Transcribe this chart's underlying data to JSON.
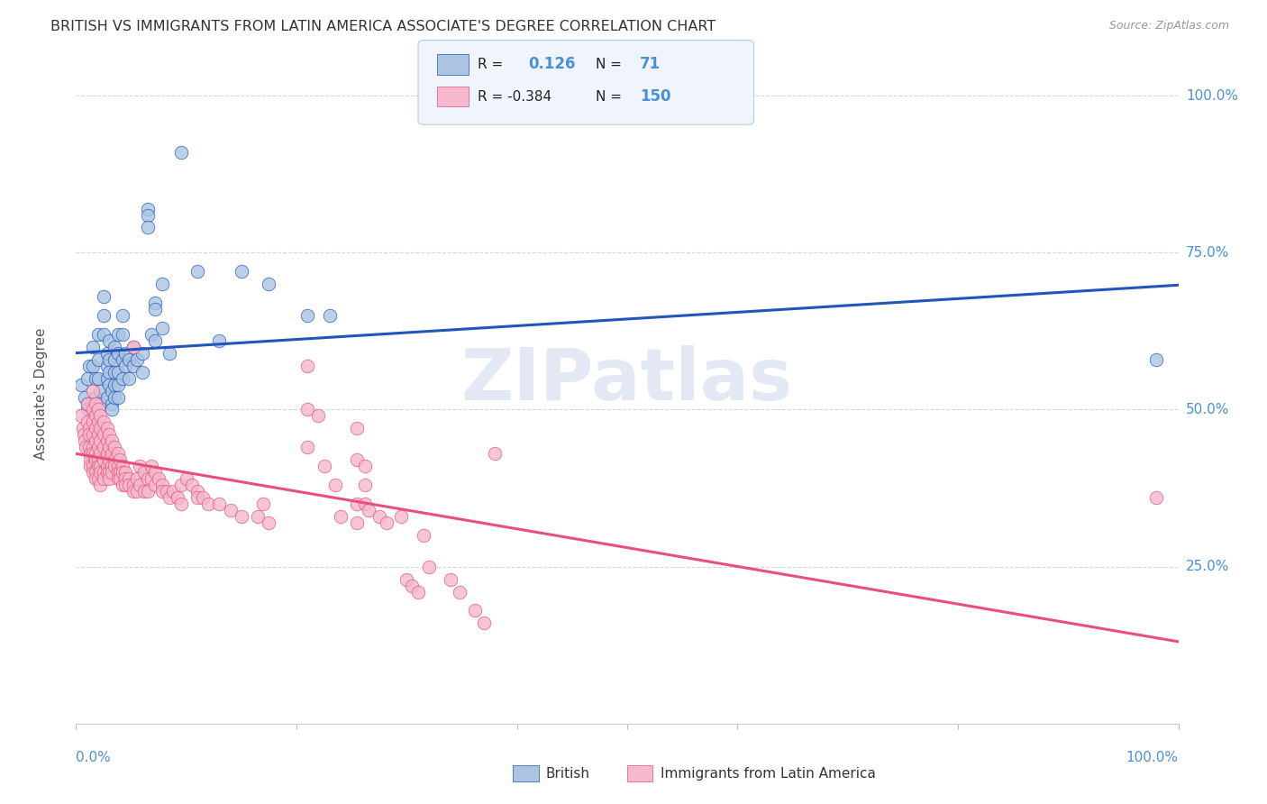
{
  "title": "BRITISH VS IMMIGRANTS FROM LATIN AMERICA ASSOCIATE'S DEGREE CORRELATION CHART",
  "source": "Source: ZipAtlas.com",
  "ylabel": "Associate's Degree",
  "british_color": "#aac4e2",
  "latin_color": "#f5b8cc",
  "trendline_british_color": "#2255bb",
  "trendline_latin_color": "#e8507a",
  "watermark": "ZIPatlas",
  "blue_scatter": [
    [
      0.005,
      0.54
    ],
    [
      0.008,
      0.52
    ],
    [
      0.01,
      0.55
    ],
    [
      0.01,
      0.51
    ],
    [
      0.01,
      0.5
    ],
    [
      0.012,
      0.57
    ],
    [
      0.015,
      0.6
    ],
    [
      0.015,
      0.57
    ],
    [
      0.018,
      0.55
    ],
    [
      0.018,
      0.52
    ],
    [
      0.018,
      0.5
    ],
    [
      0.02,
      0.62
    ],
    [
      0.02,
      0.58
    ],
    [
      0.02,
      0.55
    ],
    [
      0.022,
      0.53
    ],
    [
      0.022,
      0.51
    ],
    [
      0.025,
      0.68
    ],
    [
      0.025,
      0.65
    ],
    [
      0.025,
      0.62
    ],
    [
      0.028,
      0.59
    ],
    [
      0.028,
      0.57
    ],
    [
      0.028,
      0.55
    ],
    [
      0.028,
      0.52
    ],
    [
      0.03,
      0.61
    ],
    [
      0.03,
      0.58
    ],
    [
      0.03,
      0.56
    ],
    [
      0.03,
      0.54
    ],
    [
      0.032,
      0.53
    ],
    [
      0.032,
      0.51
    ],
    [
      0.032,
      0.5
    ],
    [
      0.035,
      0.6
    ],
    [
      0.035,
      0.58
    ],
    [
      0.035,
      0.56
    ],
    [
      0.035,
      0.54
    ],
    [
      0.035,
      0.52
    ],
    [
      0.038,
      0.62
    ],
    [
      0.038,
      0.59
    ],
    [
      0.038,
      0.56
    ],
    [
      0.038,
      0.54
    ],
    [
      0.038,
      0.52
    ],
    [
      0.042,
      0.65
    ],
    [
      0.042,
      0.62
    ],
    [
      0.042,
      0.58
    ],
    [
      0.042,
      0.55
    ],
    [
      0.045,
      0.59
    ],
    [
      0.045,
      0.57
    ],
    [
      0.048,
      0.58
    ],
    [
      0.048,
      0.55
    ],
    [
      0.052,
      0.6
    ],
    [
      0.052,
      0.57
    ],
    [
      0.055,
      0.58
    ],
    [
      0.06,
      0.59
    ],
    [
      0.06,
      0.56
    ],
    [
      0.065,
      0.82
    ],
    [
      0.065,
      0.81
    ],
    [
      0.065,
      0.79
    ],
    [
      0.068,
      0.62
    ],
    [
      0.072,
      0.67
    ],
    [
      0.072,
      0.66
    ],
    [
      0.072,
      0.61
    ],
    [
      0.078,
      0.7
    ],
    [
      0.078,
      0.63
    ],
    [
      0.085,
      0.59
    ],
    [
      0.095,
      0.91
    ],
    [
      0.11,
      0.72
    ],
    [
      0.13,
      0.61
    ],
    [
      0.15,
      0.72
    ],
    [
      0.175,
      0.7
    ],
    [
      0.21,
      0.65
    ],
    [
      0.23,
      0.65
    ],
    [
      0.98,
      0.58
    ]
  ],
  "pink_scatter": [
    [
      0.005,
      0.49
    ],
    [
      0.006,
      0.47
    ],
    [
      0.007,
      0.46
    ],
    [
      0.008,
      0.45
    ],
    [
      0.009,
      0.44
    ],
    [
      0.01,
      0.51
    ],
    [
      0.01,
      0.48
    ],
    [
      0.012,
      0.47
    ],
    [
      0.012,
      0.46
    ],
    [
      0.012,
      0.44
    ],
    [
      0.013,
      0.43
    ],
    [
      0.013,
      0.42
    ],
    [
      0.013,
      0.41
    ],
    [
      0.015,
      0.53
    ],
    [
      0.015,
      0.5
    ],
    [
      0.015,
      0.48
    ],
    [
      0.015,
      0.46
    ],
    [
      0.015,
      0.44
    ],
    [
      0.015,
      0.43
    ],
    [
      0.015,
      0.41
    ],
    [
      0.015,
      0.4
    ],
    [
      0.018,
      0.51
    ],
    [
      0.018,
      0.49
    ],
    [
      0.018,
      0.47
    ],
    [
      0.018,
      0.45
    ],
    [
      0.018,
      0.43
    ],
    [
      0.018,
      0.42
    ],
    [
      0.018,
      0.4
    ],
    [
      0.018,
      0.39
    ],
    [
      0.02,
      0.5
    ],
    [
      0.02,
      0.48
    ],
    [
      0.02,
      0.46
    ],
    [
      0.02,
      0.44
    ],
    [
      0.02,
      0.42
    ],
    [
      0.02,
      0.41
    ],
    [
      0.02,
      0.39
    ],
    [
      0.022,
      0.49
    ],
    [
      0.022,
      0.47
    ],
    [
      0.022,
      0.45
    ],
    [
      0.022,
      0.43
    ],
    [
      0.022,
      0.41
    ],
    [
      0.022,
      0.4
    ],
    [
      0.022,
      0.38
    ],
    [
      0.025,
      0.48
    ],
    [
      0.025,
      0.46
    ],
    [
      0.025,
      0.44
    ],
    [
      0.025,
      0.42
    ],
    [
      0.025,
      0.4
    ],
    [
      0.025,
      0.39
    ],
    [
      0.028,
      0.47
    ],
    [
      0.028,
      0.45
    ],
    [
      0.028,
      0.43
    ],
    [
      0.028,
      0.41
    ],
    [
      0.028,
      0.4
    ],
    [
      0.03,
      0.46
    ],
    [
      0.03,
      0.44
    ],
    [
      0.03,
      0.42
    ],
    [
      0.03,
      0.4
    ],
    [
      0.03,
      0.39
    ],
    [
      0.032,
      0.45
    ],
    [
      0.032,
      0.43
    ],
    [
      0.032,
      0.41
    ],
    [
      0.032,
      0.4
    ],
    [
      0.035,
      0.44
    ],
    [
      0.035,
      0.42
    ],
    [
      0.035,
      0.41
    ],
    [
      0.038,
      0.43
    ],
    [
      0.038,
      0.41
    ],
    [
      0.038,
      0.4
    ],
    [
      0.038,
      0.39
    ],
    [
      0.04,
      0.42
    ],
    [
      0.04,
      0.4
    ],
    [
      0.04,
      0.39
    ],
    [
      0.042,
      0.41
    ],
    [
      0.042,
      0.4
    ],
    [
      0.042,
      0.38
    ],
    [
      0.045,
      0.4
    ],
    [
      0.045,
      0.39
    ],
    [
      0.045,
      0.38
    ],
    [
      0.048,
      0.39
    ],
    [
      0.048,
      0.38
    ],
    [
      0.052,
      0.6
    ],
    [
      0.052,
      0.38
    ],
    [
      0.052,
      0.37
    ],
    [
      0.055,
      0.39
    ],
    [
      0.055,
      0.37
    ],
    [
      0.058,
      0.41
    ],
    [
      0.058,
      0.38
    ],
    [
      0.062,
      0.4
    ],
    [
      0.062,
      0.37
    ],
    [
      0.065,
      0.39
    ],
    [
      0.065,
      0.37
    ],
    [
      0.068,
      0.41
    ],
    [
      0.068,
      0.39
    ],
    [
      0.072,
      0.4
    ],
    [
      0.072,
      0.38
    ],
    [
      0.075,
      0.39
    ],
    [
      0.078,
      0.38
    ],
    [
      0.078,
      0.37
    ],
    [
      0.082,
      0.37
    ],
    [
      0.085,
      0.36
    ],
    [
      0.088,
      0.37
    ],
    [
      0.092,
      0.36
    ],
    [
      0.095,
      0.38
    ],
    [
      0.095,
      0.35
    ],
    [
      0.1,
      0.39
    ],
    [
      0.105,
      0.38
    ],
    [
      0.11,
      0.37
    ],
    [
      0.11,
      0.36
    ],
    [
      0.115,
      0.36
    ],
    [
      0.12,
      0.35
    ],
    [
      0.13,
      0.35
    ],
    [
      0.14,
      0.34
    ],
    [
      0.15,
      0.33
    ],
    [
      0.165,
      0.33
    ],
    [
      0.17,
      0.35
    ],
    [
      0.175,
      0.32
    ],
    [
      0.21,
      0.57
    ],
    [
      0.21,
      0.5
    ],
    [
      0.21,
      0.44
    ],
    [
      0.22,
      0.49
    ],
    [
      0.225,
      0.41
    ],
    [
      0.235,
      0.38
    ],
    [
      0.24,
      0.33
    ],
    [
      0.255,
      0.47
    ],
    [
      0.255,
      0.42
    ],
    [
      0.255,
      0.35
    ],
    [
      0.255,
      0.32
    ],
    [
      0.262,
      0.41
    ],
    [
      0.262,
      0.38
    ],
    [
      0.262,
      0.35
    ],
    [
      0.265,
      0.34
    ],
    [
      0.275,
      0.33
    ],
    [
      0.282,
      0.32
    ],
    [
      0.295,
      0.33
    ],
    [
      0.3,
      0.23
    ],
    [
      0.305,
      0.22
    ],
    [
      0.31,
      0.21
    ],
    [
      0.315,
      0.3
    ],
    [
      0.32,
      0.25
    ],
    [
      0.34,
      0.23
    ],
    [
      0.348,
      0.21
    ],
    [
      0.362,
      0.18
    ],
    [
      0.37,
      0.16
    ],
    [
      0.38,
      0.43
    ],
    [
      0.98,
      0.36
    ]
  ],
  "yticks": [
    0.25,
    0.5,
    0.75,
    1.0
  ],
  "ytick_labels": [
    "25.0%",
    "50.0%",
    "75.0%",
    "100.0%"
  ],
  "xlim": [
    0.0,
    1.0
  ],
  "ylim": [
    0.0,
    1.05
  ],
  "background_color": "#ffffff",
  "grid_color": "#d0d8e8",
  "title_color": "#333333",
  "axis_label_color": "#4a90d9"
}
